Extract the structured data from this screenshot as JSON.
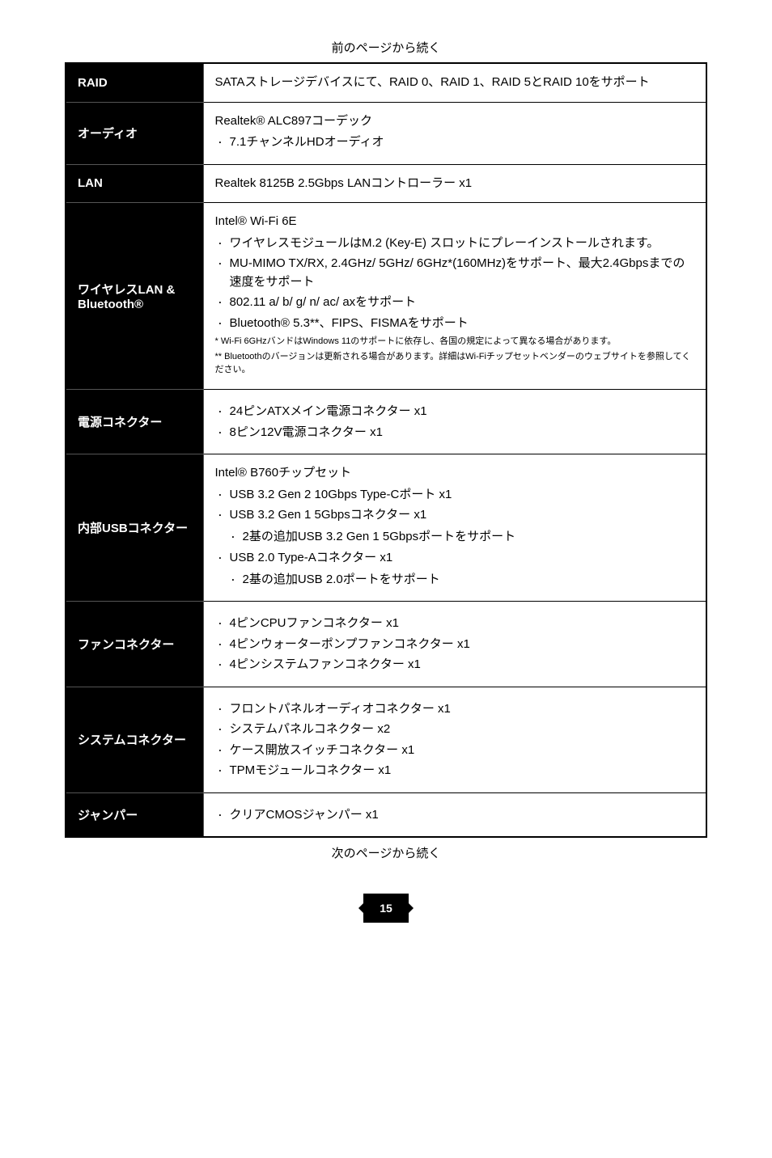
{
  "captions": {
    "top": "前のページから続く",
    "bottom": "次のページから続く"
  },
  "page_number": "15",
  "rows": {
    "raid": {
      "label": "RAID",
      "text": "SATAストレージデバイスにて、RAID 0、RAID 1、RAID 5とRAID 10をサポート"
    },
    "audio": {
      "label": "オーディオ",
      "heading": "Realtek® ALC897コーデック",
      "bullets": [
        "7.1チャンネルHDオーディオ"
      ]
    },
    "lan": {
      "label": "LAN",
      "text": "Realtek 8125B 2.5Gbps LANコントローラー x1"
    },
    "wireless": {
      "label": "ワイヤレスLAN & Bluetooth®",
      "heading": "Intel® Wi-Fi 6E",
      "bullets": [
        "ワイヤレスモジュールはM.2 (Key-E) スロットにプレーインストールされます。",
        "MU-MIMO TX/RX, 2.4GHz/ 5GHz/ 6GHz*(160MHz)をサポート、最大2.4Gbpsまでの速度をサポート",
        "802.11 a/ b/ g/ n/ ac/ axをサポート",
        "Bluetooth® 5.3**、FIPS、FISMAをサポート"
      ],
      "fineprint": [
        "* Wi-Fi 6GHzバンドはWindows 11のサポートに依存し、各国の規定によって異なる場合があります。",
        "** Bluetoothのバージョンは更新される場合があります。詳細はWi-Fiチップセットベンダーのウェブサイトを参照してください。"
      ]
    },
    "power": {
      "label": "電源コネクター",
      "bullets": [
        "24ピンATXメイン電源コネクター x1",
        "8ピン12V電源コネクター x1"
      ]
    },
    "usb": {
      "label": "内部USBコネクター",
      "heading": "Intel® B760チップセット",
      "bullets": [
        "USB 3.2 Gen 2 10Gbps Type-Cポート x1",
        "USB 3.2 Gen 1 5Gbpsコネクター x1",
        "USB 2.0 Type-Aコネクター x1"
      ],
      "sub_bullets": {
        "1": "2基の追加USB 3.2 Gen 1 5Gbpsポートをサポート",
        "2": "2基の追加USB 2.0ポートをサポート"
      }
    },
    "fan": {
      "label": "ファンコネクター",
      "bullets": [
        "4ピンCPUファンコネクター x1",
        "4ピンウォーターポンプファンコネクター x1",
        "4ピンシステムファンコネクター x1"
      ]
    },
    "system": {
      "label": "システムコネクター",
      "bullets": [
        "フロントパネルオーディオコネクター x1",
        "システムパネルコネクター x2",
        "ケース開放スイッチコネクター x1",
        "TPMモジュールコネクター x1"
      ]
    },
    "jumper": {
      "label": "ジャンパー",
      "bullets": [
        "クリアCMOSジャンパー x1"
      ]
    }
  }
}
